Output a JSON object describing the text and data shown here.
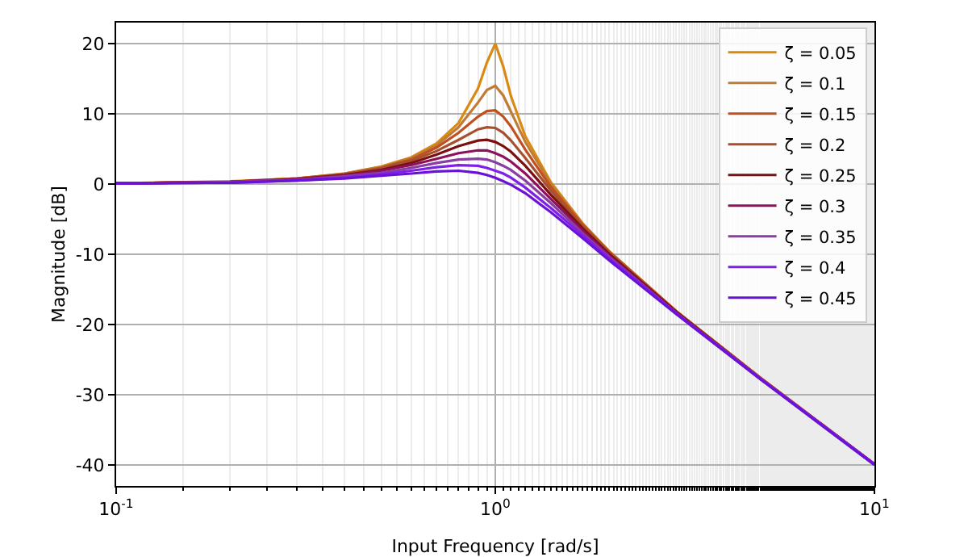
{
  "chart_data": {
    "type": "line",
    "xlabel": "Input Frequency [rad/s]",
    "ylabel": "Magnitude [dB]",
    "log": "x",
    "x": [
      0.1,
      0.2,
      0.3,
      0.4,
      0.5,
      0.6,
      0.7,
      0.8,
      0.9,
      0.95,
      1,
      1.05,
      1.1,
      1.2,
      1.4,
      1.7,
      2,
      3,
      5,
      10
    ],
    "xlim": [
      0.1,
      10
    ],
    "xticks": [
      {
        "value": 0.1,
        "label": "10$^{-1}$"
      },
      {
        "value": 1,
        "label": "10$^{0}$"
      },
      {
        "value": 10,
        "label": "10$^{1}$"
      }
    ],
    "ylim": [
      -43,
      23
    ],
    "yticks": [
      -40,
      -30,
      -20,
      -10,
      0,
      10,
      20
    ],
    "grid": true,
    "legend": "top right",
    "line_style": "solid",
    "marker": "none",
    "series": [
      {
        "name": "ζ = 0.05",
        "color": "#d88a12",
        "values": [
          0.1,
          0.4,
          0.8,
          1.5,
          2.5,
          3.8,
          5.8,
          8.7,
          13.6,
          17.3,
          20,
          16.7,
          12.5,
          6.8,
          0.3,
          -5.6,
          -9.6,
          -18.1,
          -27.6,
          -39.9
        ]
      },
      {
        "name": "ζ = 0.1",
        "color": "#c07c35",
        "values": [
          0.1,
          0.3,
          0.8,
          1.5,
          2.4,
          3.7,
          5.5,
          8.1,
          11.6,
          13.4,
          14,
          12.6,
          10.3,
          6,
          0,
          -5.7,
          -9.6,
          -18.1,
          -27.6,
          -39.9
        ]
      },
      {
        "name": "ζ = 0.15",
        "color": "#c0501e",
        "values": [
          0.1,
          0.3,
          0.8,
          1.4,
          2.3,
          3.5,
          5.2,
          7.3,
          9.6,
          10.4,
          10.5,
          9.6,
          8.2,
          4.9,
          -0.4,
          -5.8,
          -9.7,
          -18.1,
          -27.6,
          -39.9
        ]
      },
      {
        "name": "ζ = 0.2",
        "color": "#a5502e",
        "values": [
          0.1,
          0.3,
          0.7,
          1.4,
          2.2,
          3.3,
          4.7,
          6.3,
          7.8,
          8.1,
          8,
          7.3,
          6.2,
          3.7,
          -0.9,
          -6.1,
          -9.8,
          -18.2,
          -27.6,
          -39.9
        ]
      },
      {
        "name": "ζ = 0.25",
        "color": "#7a1010",
        "values": [
          0.1,
          0.3,
          0.7,
          1.3,
          2,
          3,
          4.2,
          5.4,
          6.2,
          6.3,
          6,
          5.4,
          4.6,
          2.6,
          -1.5,
          -6.3,
          -10,
          -18.2,
          -27.7,
          -39.9
        ]
      },
      {
        "name": "ζ = 0.3",
        "color": "#8e0f5b",
        "values": [
          0.1,
          0.3,
          0.7,
          1.2,
          1.9,
          2.7,
          3.6,
          4.4,
          4.8,
          4.8,
          4.4,
          3.9,
          3.2,
          1.5,
          -2.1,
          -6.6,
          -10.2,
          -18.3,
          -27.7,
          -39.9
        ]
      },
      {
        "name": "ζ = 0.35",
        "color": "#8a3ea0",
        "values": [
          0.1,
          0.3,
          0.6,
          1.1,
          1.6,
          2.3,
          3,
          3.5,
          3.6,
          3.5,
          3.1,
          2.6,
          2,
          0.5,
          -2.7,
          -7,
          -10.4,
          -18.4,
          -27.7,
          -39.9
        ]
      },
      {
        "name": "ζ = 0.4",
        "color": "#7f1fe8",
        "values": [
          0.1,
          0.2,
          0.5,
          0.9,
          1.4,
          1.9,
          2.4,
          2.7,
          2.6,
          2.3,
          1.9,
          1.5,
          0.9,
          -0.5,
          -3.4,
          -7.3,
          -10.6,
          -18.4,
          -27.7,
          -39.9
        ]
      },
      {
        "name": "ζ = 0.45",
        "color": "#6a10d8",
        "values": [
          0.1,
          0.2,
          0.5,
          0.8,
          1.2,
          1.5,
          1.8,
          1.9,
          1.6,
          1.3,
          0.9,
          0.4,
          -0.1,
          -1.3,
          -4,
          -7.7,
          -10.9,
          -18.5,
          -27.8,
          -40
        ]
      }
    ]
  }
}
